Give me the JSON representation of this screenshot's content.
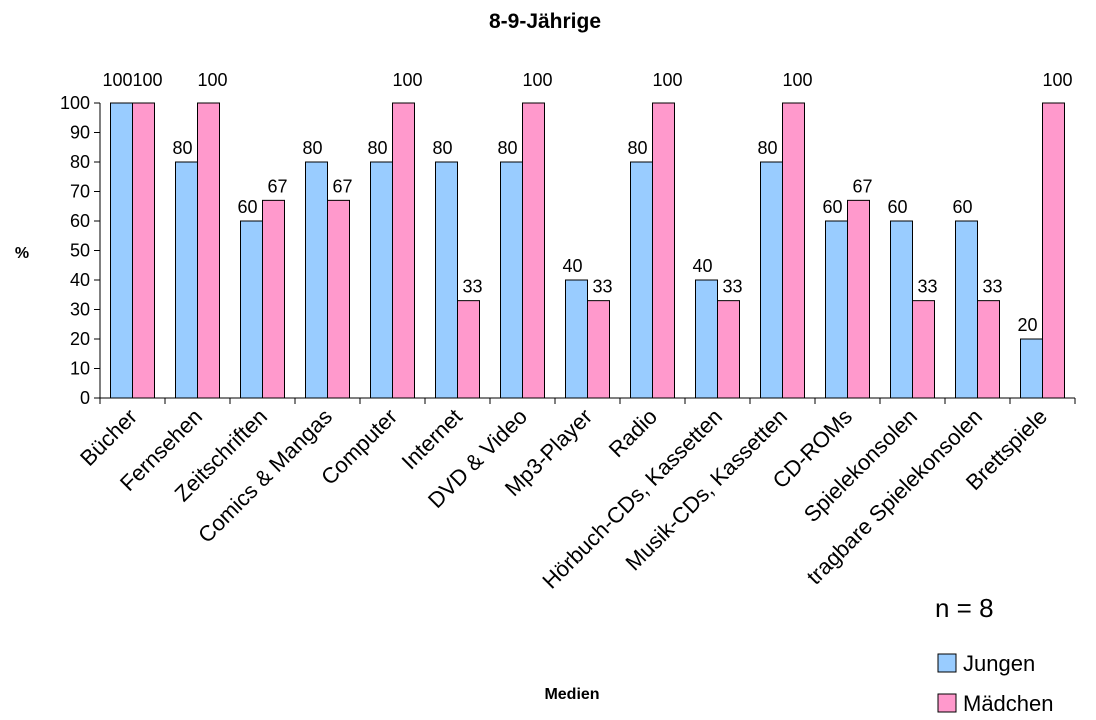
{
  "chart_data": {
    "type": "bar",
    "title": "8-9-Jährige",
    "xlabel": "Medien",
    "ylabel": "%",
    "ylim": [
      0,
      100
    ],
    "ytick_step": 10,
    "grid": false,
    "legend_position": "bottom-right",
    "note": "n = 8",
    "categories": [
      "Bücher",
      "Fernsehen",
      "Zeitschriften",
      "Comics & Mangas",
      "Computer",
      "Internet",
      "DVD & Video",
      "Mp3-Player",
      "Radio",
      "Hörbuch-CDs, Kassetten",
      "Musik-CDs, Kassetten",
      "CD-ROMs",
      "Spielekonsolen",
      "tragbare Spielekonsolen",
      "Brettspiele"
    ],
    "series": [
      {
        "name": "Jungen",
        "color": "#99CCFF",
        "values": [
          100,
          80,
          60,
          80,
          80,
          80,
          80,
          40,
          80,
          40,
          80,
          60,
          60,
          60,
          20
        ]
      },
      {
        "name": "Mädchen",
        "color": "#FF99CC",
        "values": [
          100,
          100,
          67,
          67,
          100,
          33,
          100,
          33,
          100,
          33,
          100,
          67,
          33,
          33,
          100
        ]
      }
    ]
  }
}
